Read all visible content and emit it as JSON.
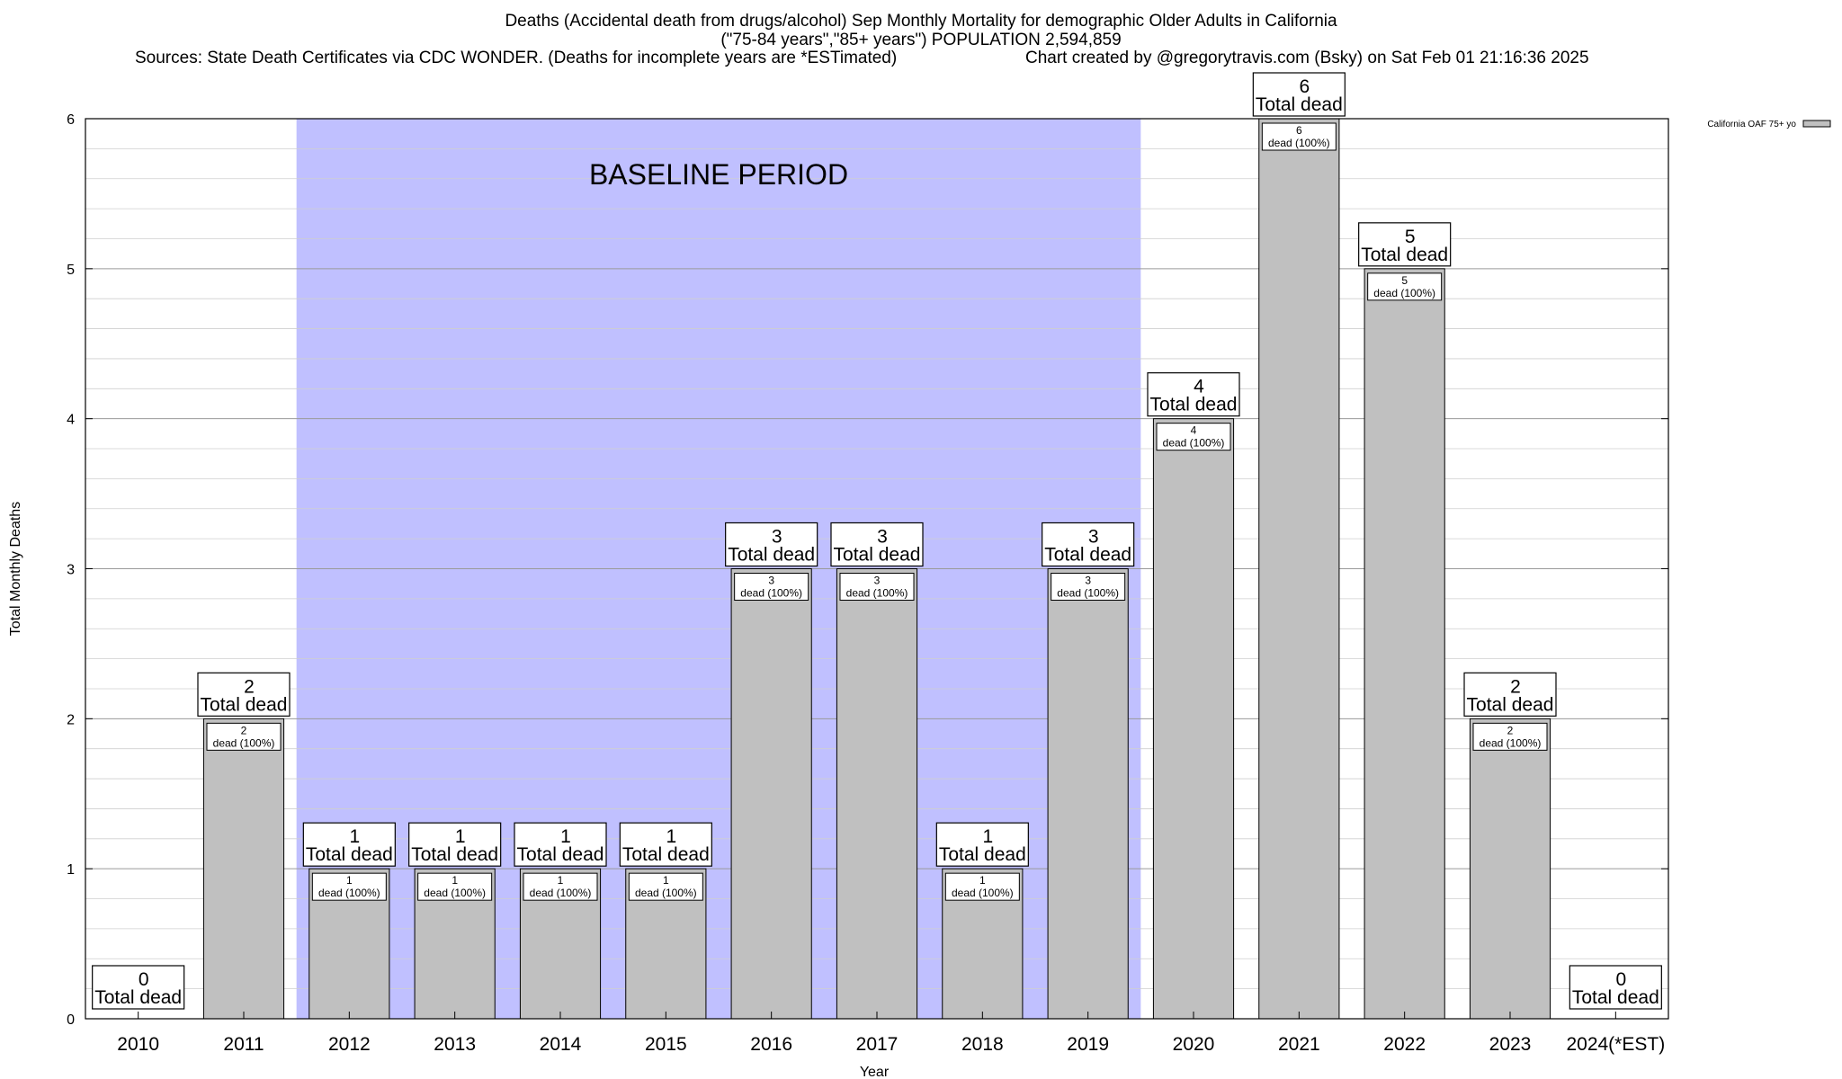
{
  "chart_data": {
    "type": "bar",
    "title": "Deaths (Accidental death from drugs/alcohol) Sep Monthly Mortality for demographic Older Adults in California",
    "subtitle": "(\"75-84 years\",\"85+ years\") POPULATION 2,594,859",
    "sources": "Sources: State Death Certificates via CDC WONDER. (Deaths for incomplete years are *ESTimated)",
    "credit": "Chart created by @gregorytravis.com (Bsky) on Sat Feb 01 21:16:36 2025",
    "xlabel": "Year",
    "ylabel": "Total Monthly Deaths",
    "ylim": [
      0,
      6
    ],
    "y_ticks": [
      0,
      1,
      2,
      3,
      4,
      5,
      6
    ],
    "grid": true,
    "legend": {
      "label": "California OAF 75+ yo",
      "placement": "top-right"
    },
    "baseline": {
      "label": "BASELINE PERIOD",
      "from": "2012",
      "to": "2019",
      "color": "#c0c0ff"
    },
    "bar_color": "#c0c0c0",
    "categories": [
      "2010",
      "2011",
      "2012",
      "2013",
      "2014",
      "2015",
      "2016",
      "2017",
      "2018",
      "2019",
      "2020",
      "2021",
      "2022",
      "2023",
      "2024(*EST)"
    ],
    "series": [
      {
        "name": "California OAF 75+ yo",
        "values": [
          0,
          2,
          1,
          1,
          1,
          1,
          3,
          3,
          1,
          3,
          4,
          6,
          5,
          2,
          0
        ]
      }
    ],
    "total_label_suffix": "Total dead",
    "inner_label_suffix": "dead (100%)"
  }
}
